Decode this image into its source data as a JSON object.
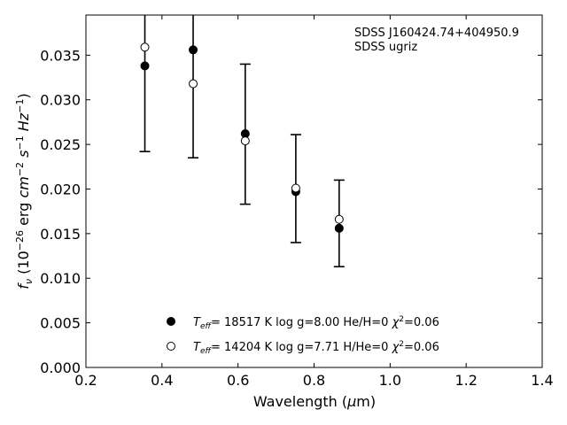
{
  "chart_data": {
    "type": "scatter",
    "xlabel": "Wavelength (μm)",
    "ylabel": "fν (10⁻²⁶ erg cm⁻² s⁻¹ Hz⁻¹)",
    "xlim": [
      0.2,
      1.4
    ],
    "ylim": [
      0.0,
      0.0395
    ],
    "x_ticks": [
      0.2,
      0.4,
      0.6,
      0.8,
      1.0,
      1.2,
      1.4
    ],
    "x_tick_labels": [
      "0.2",
      "0.4",
      "0.6",
      "0.8",
      "1.0",
      "1.2",
      "1.4"
    ],
    "y_ticks": [
      0.0,
      0.005,
      0.01,
      0.015,
      0.02,
      0.025,
      0.03,
      0.035
    ],
    "y_tick_labels": [
      "0.000",
      "0.005",
      "0.010",
      "0.015",
      "0.020",
      "0.025",
      "0.030",
      "0.035"
    ],
    "grid": false,
    "annotations": [
      "SDSS J160424.74+404950.9",
      "SDSS ugriz"
    ],
    "observed": {
      "x": [
        0.355,
        0.482,
        0.619,
        0.752,
        0.866
      ],
      "yerr_low": [
        0.0242,
        0.0235,
        0.0183,
        0.014,
        0.0113
      ],
      "yerr_high": [
        0.0395,
        0.0395,
        0.034,
        0.0261,
        0.021
      ]
    },
    "series": [
      {
        "name": "Teff= 18517 K  log g=8.00  He/H=0  χ²=0.06",
        "marker": "filled-circle",
        "x": [
          0.355,
          0.482,
          0.619,
          0.752,
          0.866
        ],
        "y": [
          0.0338,
          0.0356,
          0.0262,
          0.0197,
          0.0156
        ]
      },
      {
        "name": "Teff= 14204 K  log g=7.71  H/He=0  χ²=0.06",
        "marker": "open-circle",
        "x": [
          0.355,
          0.482,
          0.619,
          0.752,
          0.866
        ],
        "y": [
          0.0359,
          0.0318,
          0.0254,
          0.0201,
          0.0166
        ]
      }
    ],
    "legend_position": "lower-center"
  }
}
